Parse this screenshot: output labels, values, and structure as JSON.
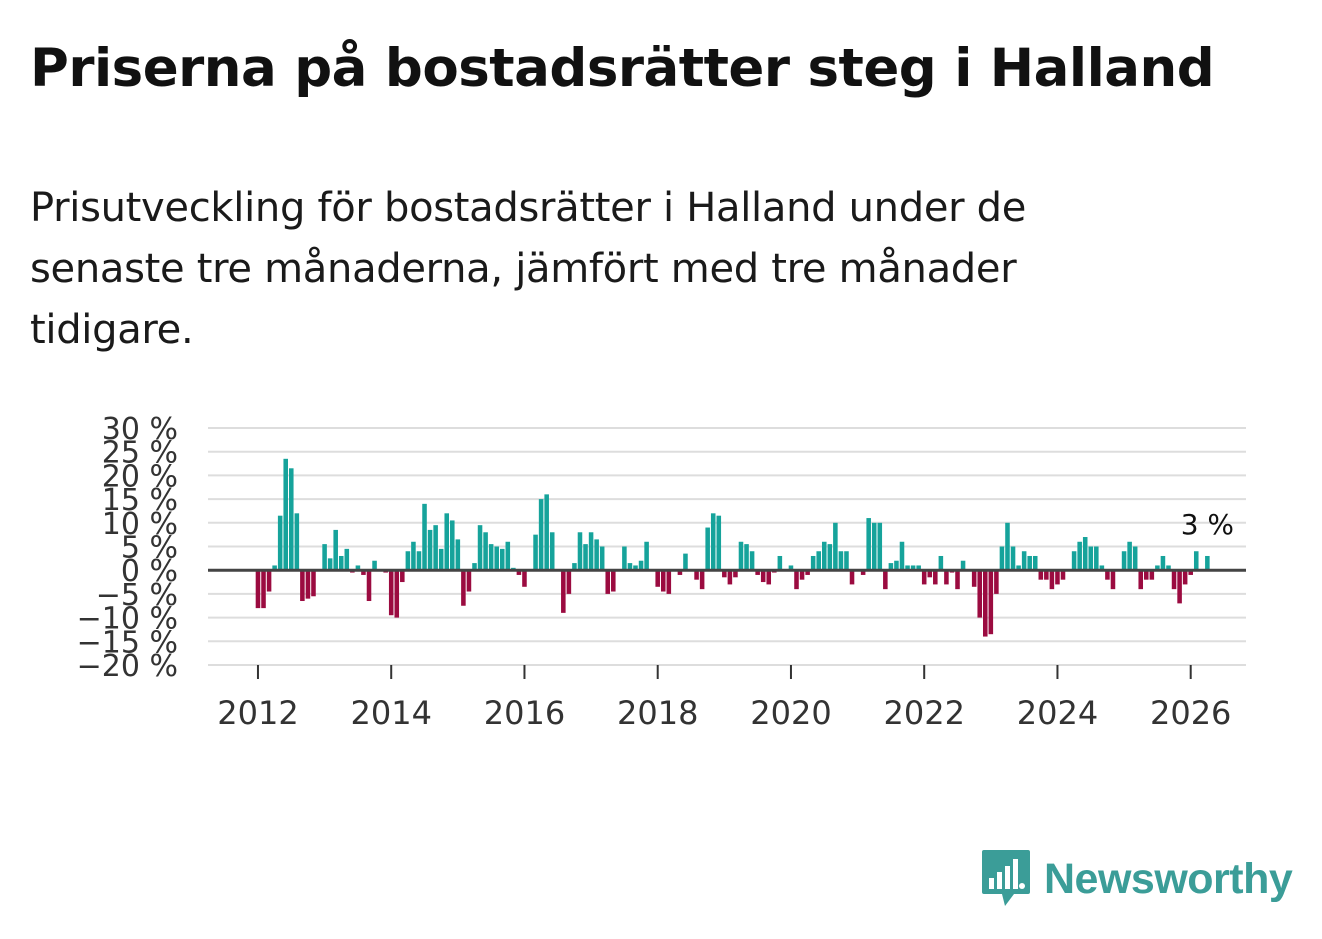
{
  "title": "Priserna på bostadsrätter steg i Halland",
  "subtitle": "Prisutveckling för bostadsrätter i Halland under de senaste tre månaderna, jämfört med tre månader tidigare.",
  "brand": {
    "name": "Newsworthy"
  },
  "colors": {
    "positive": "#16a39b",
    "negative": "#9b0b40",
    "brand": "#3b9d98",
    "grid": "#dddddd",
    "zero": "#444444"
  },
  "chart_data": {
    "type": "bar",
    "title": "",
    "xlabel": "",
    "ylabel": "",
    "ylim": [
      -20,
      30
    ],
    "yticks": [
      30,
      25,
      20,
      15,
      10,
      5,
      0,
      -5,
      -10,
      -15,
      -20
    ],
    "ytick_labels": [
      "30 %",
      "25 %",
      "20 %",
      "15 %",
      "10 %",
      "5 %",
      "0 %",
      "−5 %",
      "−10 %",
      "−15 %",
      "−20 %"
    ],
    "xlim": [
      2011.25,
      2026.83
    ],
    "xticks": [
      2012,
      2014,
      2016,
      2018,
      2020,
      2022,
      2024,
      2026
    ],
    "xtick_labels": [
      "2012",
      "2014",
      "2016",
      "2018",
      "2020",
      "2022",
      "2024",
      "2026"
    ],
    "start": [
      2012,
      1
    ],
    "last_label": "3 %",
    "values": [
      -8,
      -8,
      -4.5,
      1,
      11.5,
      23.5,
      21.5,
      12,
      -6.5,
      -6,
      -5.5,
      0,
      5.5,
      2.5,
      8.5,
      3,
      4.5,
      -0.5,
      1,
      -1,
      -6.5,
      2,
      0,
      -0.5,
      -9.5,
      -10,
      -2.5,
      4,
      6,
      4,
      14,
      8.5,
      9.5,
      4.5,
      12,
      10.5,
      6.5,
      -7.5,
      -4.5,
      1.5,
      9.5,
      8,
      5.5,
      5,
      4.5,
      6,
      0.5,
      -1,
      -3.5,
      0,
      7.5,
      15,
      16,
      8,
      0,
      -9,
      -5,
      1.5,
      8,
      5.5,
      8,
      6.5,
      5,
      -5,
      -4.5,
      0,
      5,
      1.5,
      1,
      2,
      6,
      0,
      -3.5,
      -4.5,
      -5,
      0,
      -1,
      3.5,
      0,
      -2,
      -4,
      9,
      12,
      11.5,
      -1.5,
      -3,
      -1.5,
      6,
      5.5,
      4,
      -1,
      -2.5,
      -3,
      -0.5,
      3,
      0,
      1,
      -4,
      -2,
      -1,
      3,
      4,
      6,
      5.5,
      10,
      4,
      4,
      -3,
      0,
      -1,
      11,
      10,
      10,
      -4,
      1.5,
      2,
      6,
      1,
      1,
      1,
      -3,
      -1.5,
      -3,
      3,
      -3,
      -0.5,
      -4,
      2,
      0,
      -3.5,
      -10,
      -14,
      -13.5,
      -5,
      5,
      10,
      5,
      1,
      4,
      3,
      3,
      -2,
      -2,
      -4,
      -3,
      -2,
      0,
      4,
      6,
      7,
      5,
      5,
      1,
      -2,
      -4,
      0,
      4,
      6,
      5,
      -4,
      -2,
      -2,
      1,
      3,
      1,
      -4,
      -7,
      -3,
      -1,
      4,
      0,
      3
    ]
  }
}
